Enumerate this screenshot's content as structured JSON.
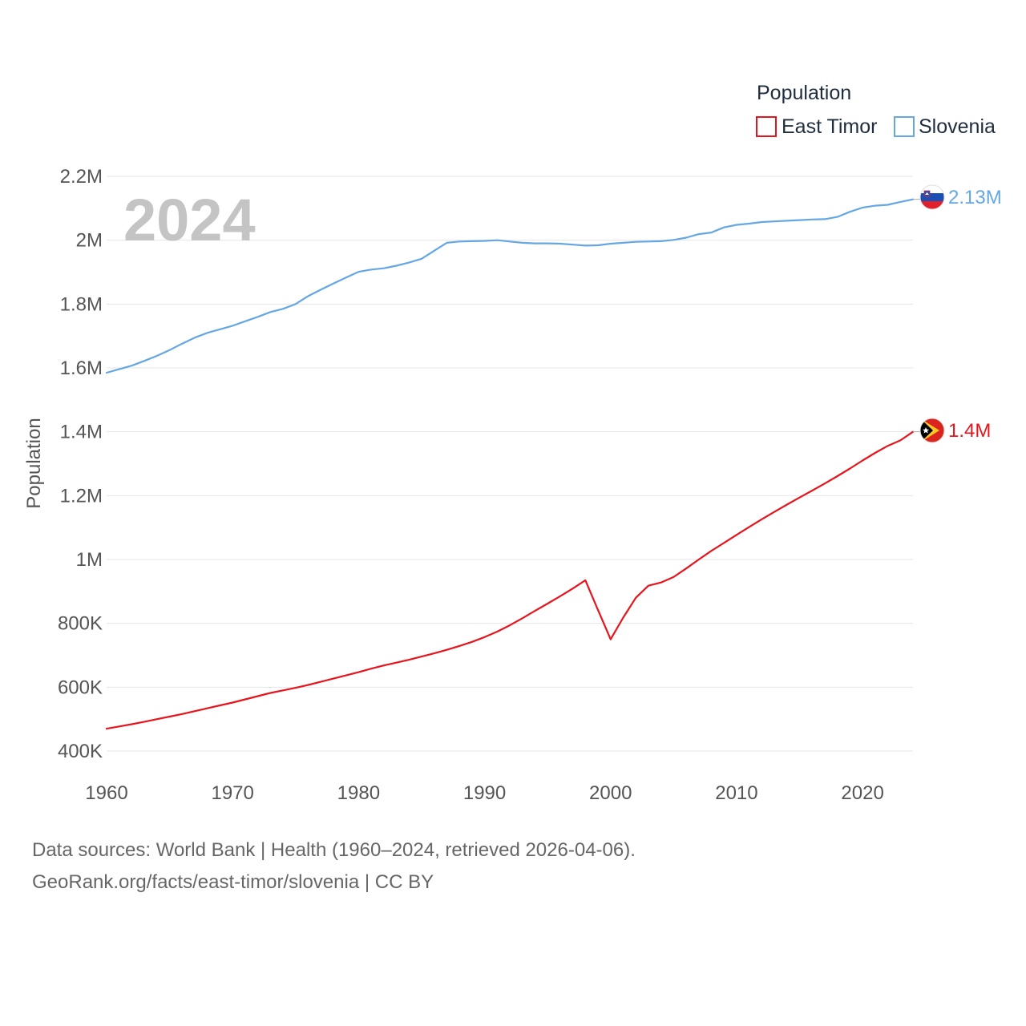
{
  "chart_data": {
    "type": "line",
    "ylabel": "Population",
    "xlabel": "",
    "xlim": [
      1960,
      2024
    ],
    "ylim": [
      370000,
      2200000
    ],
    "x_ticks": [
      1960,
      1970,
      1980,
      1990,
      2000,
      2010,
      2020
    ],
    "x_tick_labels": [
      "1960",
      "1970",
      "1980",
      "1990",
      "2000",
      "2010",
      "2020"
    ],
    "y_ticks": [
      400000,
      600000,
      800000,
      1000000,
      1200000,
      1400000,
      1600000,
      1800000,
      2000000,
      2200000
    ],
    "y_tick_labels": [
      "400K",
      "600K",
      "800K",
      "1M",
      "1.2M",
      "1.4M",
      "1.6M",
      "1.8M",
      "2M",
      "2.2M"
    ],
    "grid": true,
    "year_annotation": "2024",
    "legend": {
      "title": "Population",
      "placement": "top-right",
      "entries": [
        "East Timor",
        "Slovenia"
      ]
    },
    "series": [
      {
        "name": "East Timor",
        "color": "#e8141c",
        "end_label": "1.4M",
        "flag": "east-timor-flag",
        "x": [
          1960,
          1961,
          1962,
          1963,
          1964,
          1965,
          1966,
          1967,
          1968,
          1969,
          1970,
          1971,
          1972,
          1973,
          1974,
          1975,
          1976,
          1977,
          1978,
          1979,
          1980,
          1981,
          1982,
          1983,
          1984,
          1985,
          1986,
          1987,
          1988,
          1989,
          1990,
          1991,
          1992,
          1993,
          1994,
          1995,
          1996,
          1997,
          1998,
          1999,
          2000,
          2001,
          2002,
          2003,
          2004,
          2005,
          2006,
          2007,
          2008,
          2009,
          2010,
          2011,
          2012,
          2013,
          2014,
          2015,
          2016,
          2017,
          2018,
          2019,
          2020,
          2021,
          2022,
          2023,
          2024
        ],
        "values": [
          470000,
          477000,
          484000,
          492000,
          500000,
          508000,
          516000,
          525000,
          534000,
          543000,
          552000,
          562000,
          572000,
          582000,
          590000,
          598000,
          607000,
          617000,
          627000,
          637000,
          647000,
          658000,
          668000,
          677000,
          686000,
          696000,
          706000,
          717000,
          729000,
          742000,
          757000,
          774000,
          794000,
          816000,
          839000,
          862000,
          885000,
          909000,
          935000,
          842000,
          750000,
          818000,
          880000,
          918000,
          928000,
          945000,
          972000,
          1000000,
          1027000,
          1052000,
          1077000,
          1102000,
          1126000,
          1149000,
          1172000,
          1194000,
          1216000,
          1238000,
          1261000,
          1285000,
          1310000,
          1334000,
          1356000,
          1373000,
          1400000
        ]
      },
      {
        "name": "Slovenia",
        "color": "#64a7e4",
        "end_label": "2.13M",
        "flag": "slovenia-flag",
        "x": [
          1960,
          1961,
          1962,
          1963,
          1964,
          1965,
          1966,
          1967,
          1968,
          1969,
          1970,
          1971,
          1972,
          1973,
          1974,
          1975,
          1976,
          1977,
          1978,
          1979,
          1980,
          1981,
          1982,
          1983,
          1984,
          1985,
          1986,
          1987,
          1988,
          1989,
          1990,
          1991,
          1992,
          1993,
          1994,
          1995,
          1996,
          1997,
          1998,
          1999,
          2000,
          2001,
          2002,
          2003,
          2004,
          2005,
          2006,
          2007,
          2008,
          2009,
          2010,
          2011,
          2012,
          2013,
          2014,
          2015,
          2016,
          2017,
          2018,
          2019,
          2020,
          2021,
          2022,
          2023,
          2024
        ],
        "values": [
          1585000,
          1596000,
          1607000,
          1622000,
          1638000,
          1656000,
          1676000,
          1695000,
          1710000,
          1721000,
          1732000,
          1746000,
          1760000,
          1775000,
          1785000,
          1800000,
          1825000,
          1845000,
          1864000,
          1883000,
          1901000,
          1908000,
          1912000,
          1920000,
          1930000,
          1942000,
          1967000,
          1992000,
          1996000,
          1997000,
          1998000,
          2000000,
          1996000,
          1992000,
          1990000,
          1990000,
          1989000,
          1986000,
          1983000,
          1984000,
          1989000,
          1992000,
          1995000,
          1996000,
          1997000,
          2001000,
          2008000,
          2019000,
          2024000,
          2040000,
          2048000,
          2052000,
          2057000,
          2059000,
          2061000,
          2063000,
          2065000,
          2066000,
          2073000,
          2089000,
          2102000,
          2108000,
          2111000,
          2120000,
          2128000
        ]
      }
    ]
  },
  "footer": {
    "line1": "Data sources: World Bank | Health (1960–2024, retrieved 2026-04-06).",
    "line2": "GeoRank.org/facts/east-timor/slovenia | CC BY"
  }
}
